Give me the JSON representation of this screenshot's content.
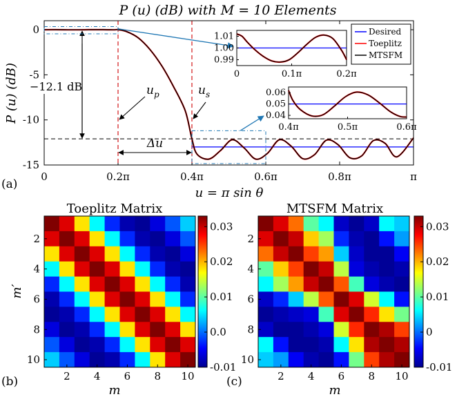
{
  "figure": {
    "main_title": "P (u) (dB) with M = 10 Elements",
    "panel_a": "(a)",
    "panel_b": "(b)",
    "panel_c": "(c)"
  },
  "colors": {
    "desired": "#0000ff",
    "toeplitz": "#ff0000",
    "mtsfm": "#000000",
    "marker": "#d62728",
    "inset_box": "#1f77b4"
  },
  "chart_data": [
    {
      "type": "line",
      "title": "P (u) (dB) with M = 10 Elements",
      "xlabel": "u = π sin θ",
      "ylabel": "P (u) (dB)",
      "xlim": [
        0,
        3.14159
      ],
      "ylim": [
        -15,
        1
      ],
      "xticks": [
        {
          "v": 0,
          "label": "0"
        },
        {
          "v": 0.62832,
          "label": "0.2π"
        },
        {
          "v": 1.25664,
          "label": "0.4π"
        },
        {
          "v": 1.88496,
          "label": "0.6π"
        },
        {
          "v": 2.51327,
          "label": "0.8π"
        },
        {
          "v": 3.14159,
          "label": "π"
        }
      ],
      "yticks": [
        {
          "v": 0,
          "label": "0"
        },
        {
          "v": -5,
          "label": "-5"
        },
        {
          "v": -10,
          "label": "-10"
        },
        {
          "v": -15,
          "label": "-15"
        }
      ],
      "legend": {
        "position": "top-right",
        "entries": [
          "Desired",
          "Toeplitz",
          "MTSFM"
        ]
      },
      "series": [
        {
          "name": "Desired",
          "segments": [
            [
              [
                0,
                0
              ],
              [
                0.62832,
                0
              ]
            ],
            [
              [
                1.25664,
                -13
              ],
              [
                3.14159,
                -13
              ]
            ]
          ]
        },
        {
          "name": "Toeplitz",
          "x": [
            0,
            0.1,
            0.2,
            0.3,
            0.4,
            0.5,
            0.6,
            0.62832,
            0.7,
            0.8,
            0.9,
            1.0,
            1.1,
            1.2,
            1.25664,
            1.3,
            1.4,
            1.5,
            1.6,
            1.7,
            1.8,
            1.9,
            2.0,
            2.1,
            2.2,
            2.3,
            2.4,
            2.5,
            2.6,
            2.7,
            2.8,
            2.9,
            3.0,
            3.14159
          ],
          "y": [
            0,
            0.003,
            -0.008,
            -0.008,
            0.006,
            0.005,
            -0.008,
            0,
            -0.2,
            -0.9,
            -2.2,
            -4.0,
            -6.3,
            -9.0,
            -12.1,
            -13.8,
            -14.35,
            -13.4,
            -12.2,
            -13.1,
            -14.35,
            -13.7,
            -12.2,
            -12.9,
            -14.3,
            -13.85,
            -12.25,
            -12.75,
            -14.2,
            -14.0,
            -12.3,
            -12.6,
            -14.1,
            -12.0
          ]
        },
        {
          "name": "MTSFM",
          "x": [
            0,
            0.1,
            0.2,
            0.3,
            0.4,
            0.5,
            0.6,
            0.62832,
            0.7,
            0.8,
            0.9,
            1.0,
            1.1,
            1.2,
            1.25664,
            1.3,
            1.4,
            1.5,
            1.6,
            1.7,
            1.8,
            1.9,
            2.0,
            2.1,
            2.2,
            2.3,
            2.4,
            2.5,
            2.6,
            2.7,
            2.8,
            2.9,
            3.0,
            3.14159
          ],
          "y": [
            0,
            0.003,
            -0.008,
            -0.008,
            0.006,
            0.005,
            -0.008,
            0,
            -0.2,
            -0.9,
            -2.2,
            -4.0,
            -6.3,
            -9.0,
            -12.1,
            -13.8,
            -14.35,
            -13.4,
            -12.2,
            -13.1,
            -14.35,
            -13.7,
            -12.2,
            -12.9,
            -14.3,
            -13.85,
            -12.25,
            -12.75,
            -14.2,
            -14.0,
            -12.3,
            -12.6,
            -14.1,
            -12.0
          ]
        }
      ],
      "annotations": {
        "level_label": "−12.1 dB",
        "level_db": -12.1,
        "up_label": "u_p",
        "us_label": "u_s",
        "delta_label": "Δu",
        "up_value": 0.62832,
        "us_value": 1.25664
      },
      "inset_1": {
        "type": "line",
        "xlim": [
          0,
          0.62832
        ],
        "ylim": [
          0.985,
          1.015
        ],
        "xticks": [
          {
            "v": 0,
            "label": "0"
          },
          {
            "v": 0.31416,
            "label": "0.1π"
          },
          {
            "v": 0.62832,
            "label": "0.2π"
          }
        ],
        "yticks": [
          {
            "v": 1.01,
            "label": "1.01"
          },
          {
            "v": 1.0,
            "label": "1.00"
          },
          {
            "v": 0.99,
            "label": "0.99"
          }
        ],
        "desired": 1.0,
        "x": [
          0,
          0.03,
          0.06,
          0.1,
          0.15,
          0.2,
          0.25,
          0.3,
          0.35,
          0.4,
          0.45,
          0.5,
          0.55,
          0.6,
          0.62832
        ],
        "y": [
          1.012,
          1.01,
          1.005,
          0.999,
          0.993,
          0.989,
          0.988,
          0.99,
          0.996,
          1.003,
          1.009,
          1.011,
          1.008,
          0.998,
          0.99
        ]
      },
      "inset_2": {
        "type": "line",
        "xlim": [
          1.25664,
          1.88496
        ],
        "ylim": [
          0.037,
          0.065
        ],
        "xticks": [
          {
            "v": 1.25664,
            "label": "0.4π"
          },
          {
            "v": 1.5708,
            "label": "0.5π"
          },
          {
            "v": 1.88496,
            "label": "0.6π"
          }
        ],
        "yticks": [
          {
            "v": 0.06,
            "label": "0.06"
          },
          {
            "v": 0.05,
            "label": "0.05"
          },
          {
            "v": 0.04,
            "label": "0.04"
          }
        ],
        "desired": 0.05,
        "x": [
          1.25664,
          1.28,
          1.32,
          1.38,
          1.44,
          1.5,
          1.56,
          1.62,
          1.68,
          1.74,
          1.8,
          1.85,
          1.88496
        ],
        "y": [
          0.062,
          0.053,
          0.045,
          0.0395,
          0.0405,
          0.048,
          0.0565,
          0.0605,
          0.058,
          0.051,
          0.043,
          0.039,
          0.0385
        ]
      }
    },
    {
      "type": "heatmap",
      "title": "Toeplitz Matrix",
      "xlabel": "m",
      "ylabel": "m′",
      "xticks": [
        "2",
        "4",
        "6",
        "8",
        "10"
      ],
      "yticks": [
        "2",
        "4",
        "6",
        "8",
        "10"
      ],
      "clim": [
        -0.01,
        0.033
      ],
      "colorbar_ticks": [
        {
          "v": 0.03,
          "label": "0.03"
        },
        {
          "v": 0.02,
          "label": "0.02"
        },
        {
          "v": 0.01,
          "label": "0.01"
        },
        {
          "v": 0.0,
          "label": "0.0"
        },
        {
          "v": -0.01,
          "label": "-0.01"
        }
      ],
      "lag_values": [
        0.0333,
        0.029,
        0.018,
        0.006,
        -0.003,
        -0.008,
        -0.009,
        -0.006,
        -0.001,
        0.004
      ]
    },
    {
      "type": "heatmap",
      "title": "MTSFM Matrix",
      "xlabel": "m",
      "ylabel": "",
      "xticks": [
        "2",
        "4",
        "6",
        "8",
        "10"
      ],
      "yticks": [
        "2",
        "4",
        "6",
        "8",
        "10"
      ],
      "clim": [
        -0.01,
        0.033
      ],
      "colorbar_ticks": [
        {
          "v": 0.03,
          "label": "0.03"
        },
        {
          "v": 0.02,
          "label": "0.02"
        },
        {
          "v": 0.01,
          "label": "0.01"
        },
        {
          "v": 0.0,
          "label": "0"
        },
        {
          "v": -0.01,
          "label": "-0.01"
        }
      ],
      "matrix": [
        [
          0.033,
          0.029,
          0.023,
          0.01,
          0.006,
          -0.007,
          -0.009,
          -0.007,
          0.006,
          0.004
        ],
        [
          0.029,
          0.033,
          0.03,
          0.019,
          0.013,
          -0.003,
          -0.008,
          -0.009,
          -0.004,
          0.002
        ],
        [
          0.023,
          0.03,
          0.033,
          0.025,
          0.021,
          0.004,
          -0.007,
          -0.009,
          -0.009,
          -0.005
        ],
        [
          0.01,
          0.019,
          0.025,
          0.033,
          0.03,
          0.014,
          -0.006,
          -0.008,
          -0.009,
          -0.008
        ],
        [
          0.006,
          0.013,
          0.021,
          0.03,
          0.033,
          0.024,
          0.009,
          -0.006,
          -0.008,
          -0.009
        ],
        [
          -0.007,
          -0.003,
          0.004,
          0.014,
          0.024,
          0.033,
          0.029,
          0.015,
          0.006,
          -0.004
        ],
        [
          -0.009,
          -0.008,
          -0.007,
          -0.006,
          0.009,
          0.029,
          0.033,
          0.026,
          0.018,
          0.011
        ],
        [
          -0.007,
          -0.009,
          -0.009,
          -0.008,
          -0.006,
          0.015,
          0.026,
          0.033,
          0.031,
          0.025
        ],
        [
          0.006,
          -0.004,
          -0.009,
          -0.009,
          -0.008,
          0.006,
          0.018,
          0.031,
          0.033,
          0.031
        ],
        [
          0.004,
          0.002,
          -0.005,
          -0.008,
          -0.009,
          -0.004,
          0.011,
          0.025,
          0.031,
          0.033
        ]
      ]
    }
  ]
}
